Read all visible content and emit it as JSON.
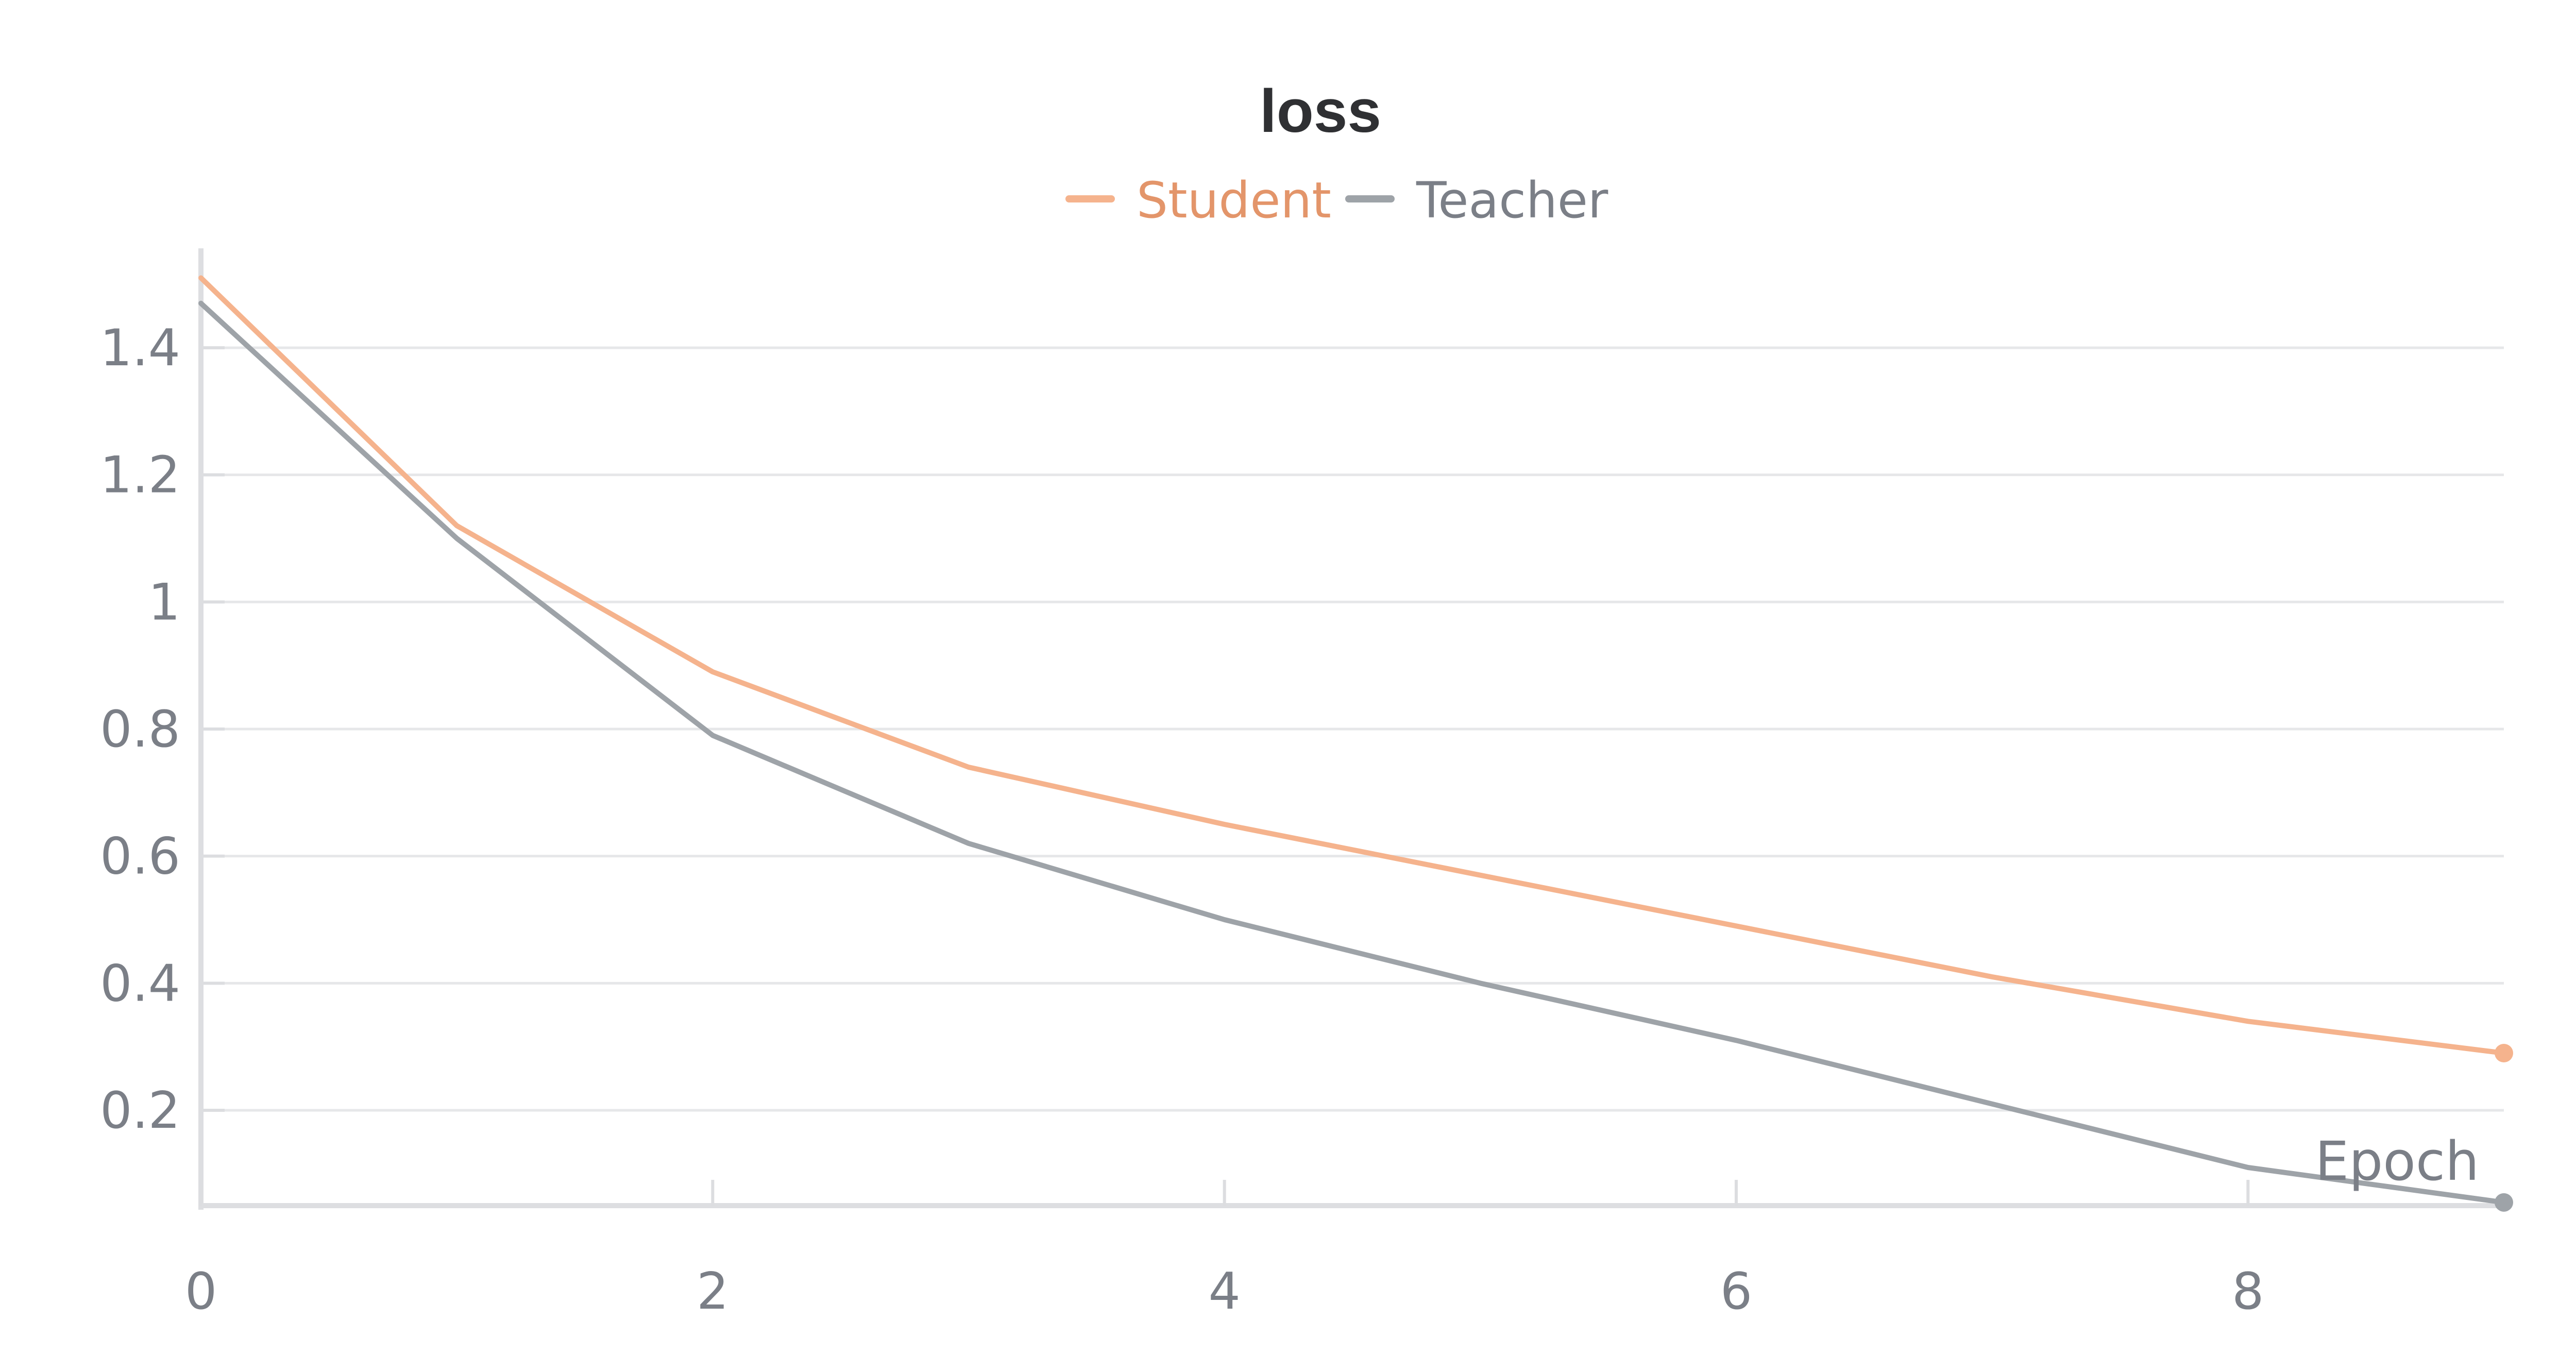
{
  "chart_data": {
    "type": "line",
    "title": "loss",
    "xlabel": "Epoch",
    "ylabel": "",
    "xlim": [
      0,
      9
    ],
    "ylim": [
      0.05,
      1.55
    ],
    "x_ticks": [
      0,
      2,
      4,
      6,
      8
    ],
    "x_tick_labels": [
      "0",
      "2",
      "4",
      "6",
      "8"
    ],
    "y_ticks": [
      0.2,
      0.4,
      0.6,
      0.8,
      1.0,
      1.2,
      1.4
    ],
    "y_tick_labels": [
      "0.2",
      "0.4",
      "0.6",
      "0.8",
      "1",
      "1.2",
      "1.4"
    ],
    "grid": true,
    "legend_position": "top-center",
    "x": [
      0,
      1,
      2,
      3,
      4,
      5,
      6,
      7,
      8,
      9
    ],
    "series": [
      {
        "name": "Student",
        "color": "#f5b38d",
        "values": [
          1.51,
          1.12,
          0.89,
          0.74,
          0.65,
          0.57,
          0.49,
          0.41,
          0.34,
          0.29
        ]
      },
      {
        "name": "Teacher",
        "color": "#9ea3a8",
        "values": [
          1.47,
          1.1,
          0.79,
          0.62,
          0.5,
          0.4,
          0.31,
          0.21,
          0.11,
          0.055
        ]
      }
    ]
  }
}
